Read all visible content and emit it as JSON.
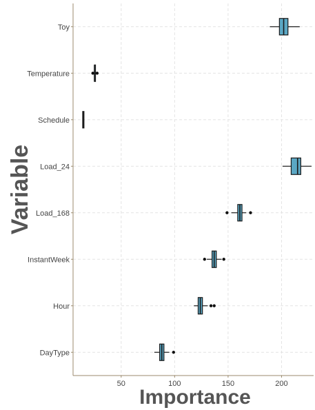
{
  "chart_data": {
    "type": "boxplot",
    "orientation": "horizontal",
    "xlabel": "Importance",
    "ylabel": "Variable",
    "xlim": [
      5,
      230
    ],
    "xticks": [
      50,
      100,
      150,
      200
    ],
    "grid": true,
    "categories": [
      "Toy",
      "Temperature",
      "Schedule",
      "Load_24",
      "Load_168",
      "InstantWeek",
      "Hour",
      "DayType"
    ],
    "boxes": [
      {
        "variable": "Toy",
        "min": 189,
        "q1": 198,
        "median": 202,
        "q3": 206,
        "max": 217,
        "outliers": []
      },
      {
        "variable": "Temperature",
        "min": 25,
        "q1": 25,
        "median": 25,
        "q3": 25.6,
        "max": 25.6,
        "outliers": [
          23.5,
          27.5
        ]
      },
      {
        "variable": "Schedule",
        "min": 14,
        "q1": 14,
        "median": 14.6,
        "q3": 15.2,
        "max": 15.2,
        "outliers": []
      },
      {
        "variable": "Load_24",
        "min": 201,
        "q1": 209,
        "median": 215,
        "q3": 218,
        "max": 228,
        "outliers": []
      },
      {
        "variable": "Load_168",
        "min": 153,
        "q1": 159,
        "median": 161,
        "q3": 163,
        "max": 167,
        "outliers": [
          149,
          171
        ]
      },
      {
        "variable": "InstantWeek",
        "min": 130,
        "q1": 135,
        "median": 137,
        "q3": 139,
        "max": 144,
        "outliers": [
          128,
          146
        ]
      },
      {
        "variable": "Hour",
        "min": 118,
        "q1": 122,
        "median": 124,
        "q3": 126,
        "max": 131,
        "outliers": [
          134,
          137
        ]
      },
      {
        "variable": "DayType",
        "min": 81,
        "q1": 86,
        "median": 88,
        "q3": 90,
        "max": 95,
        "outliers": [
          99
        ]
      }
    ],
    "box_fill": "#5ba7c4",
    "box_stroke": "#1a1a1a",
    "grid_color": "#e3e3e3",
    "axis_color": "#9b8a6d"
  }
}
